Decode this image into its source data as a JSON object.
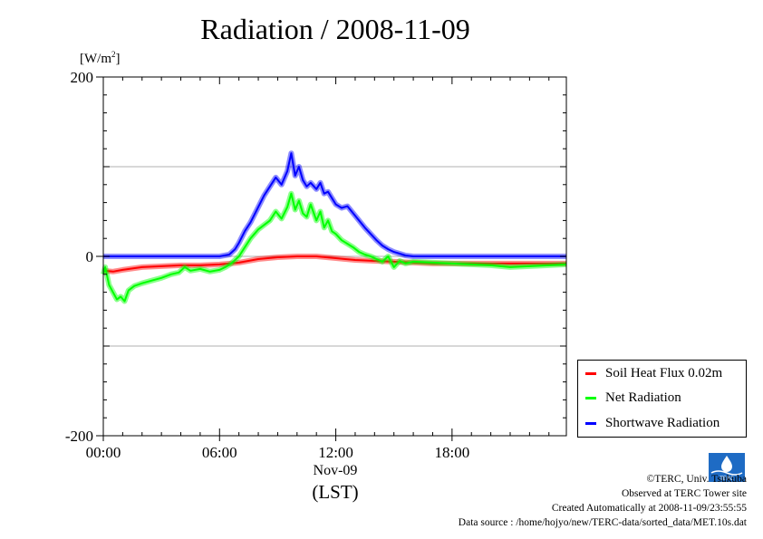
{
  "chart_data": {
    "type": "line",
    "title": "Radiation / 2008-11-09",
    "ylabel": "[W/m2]",
    "ylabel_parts": {
      "base": "[W/m",
      "sup": "2",
      "close": "]"
    },
    "xlabel": "(LST)",
    "date_label": "Nov-09",
    "xlim": [
      0,
      23.9
    ],
    "ylim": [
      -200,
      200
    ],
    "grid": true,
    "yticks": [
      200,
      0,
      -200
    ],
    "ytick_labels": [
      "200",
      "0",
      "-200"
    ],
    "xticks": [
      0,
      6,
      12,
      18
    ],
    "xtick_labels": [
      "00:00",
      "06:00",
      "12:00",
      "18:00"
    ],
    "legend_position": "bottom-right",
    "series": [
      {
        "name": "Soil Heat Flux 0.02m",
        "color": "#ff0000",
        "x": [
          0,
          0.5,
          1,
          2,
          3,
          4,
          5,
          6,
          7,
          8,
          9,
          10,
          11,
          12,
          13,
          14,
          15,
          16,
          17,
          18,
          19,
          20,
          21,
          22,
          23,
          23.9
        ],
        "y": [
          -16,
          -17,
          -15,
          -12,
          -11,
          -10,
          -10,
          -9,
          -7,
          -3,
          -1,
          0,
          0,
          -2,
          -4,
          -5,
          -6,
          -7,
          -8,
          -8,
          -8,
          -8,
          -8,
          -8,
          -8,
          -8
        ]
      },
      {
        "name": "Net Radiation",
        "color": "#00ff00",
        "x": [
          0,
          0.1,
          0.3,
          0.5,
          0.7,
          0.9,
          1.1,
          1.3,
          1.6,
          2.0,
          2.5,
          3.0,
          3.5,
          3.9,
          4.2,
          4.5,
          5.0,
          5.5,
          6.0,
          6.3,
          6.6,
          6.8,
          7.0,
          7.3,
          7.6,
          8.0,
          8.3,
          8.6,
          8.9,
          9.2,
          9.5,
          9.7,
          9.9,
          10.1,
          10.3,
          10.5,
          10.7,
          11.0,
          11.2,
          11.4,
          11.6,
          11.8,
          12.0,
          12.3,
          12.6,
          12.9,
          13.2,
          13.5,
          13.8,
          14.1,
          14.4,
          14.7,
          15.0,
          15.3,
          15.6,
          16.0,
          17.0,
          18.0,
          19.0,
          20.0,
          21.0,
          22.0,
          23.0,
          23.9
        ],
        "y": [
          -20,
          -12,
          -32,
          -40,
          -48,
          -45,
          -50,
          -38,
          -33,
          -30,
          -27,
          -24,
          -20,
          -18,
          -12,
          -16,
          -14,
          -17,
          -15,
          -12,
          -8,
          -4,
          0,
          10,
          20,
          30,
          35,
          40,
          50,
          42,
          55,
          70,
          52,
          62,
          48,
          44,
          58,
          40,
          50,
          32,
          40,
          28,
          25,
          18,
          14,
          10,
          5,
          2,
          0,
          -3,
          -6,
          0,
          -12,
          -5,
          -8,
          -6,
          -7,
          -8,
          -9,
          -10,
          -12,
          -11,
          -10,
          -9
        ]
      },
      {
        "name": "Shortwave Radiation",
        "color": "#0000ff",
        "x": [
          0,
          1,
          2,
          3,
          4,
          5,
          6,
          6.5,
          6.8,
          7.0,
          7.3,
          7.6,
          8.0,
          8.3,
          8.6,
          8.9,
          9.2,
          9.5,
          9.7,
          9.9,
          10.1,
          10.3,
          10.5,
          10.7,
          11.0,
          11.2,
          11.4,
          11.6,
          11.8,
          12.0,
          12.3,
          12.6,
          12.9,
          13.2,
          13.5,
          13.8,
          14.1,
          14.4,
          14.7,
          15.0,
          15.3,
          15.6,
          16.0,
          17.0,
          18.0,
          19.0,
          20.0,
          21.0,
          22.0,
          23.0,
          23.9
        ],
        "y": [
          0,
          0,
          0,
          0,
          0,
          0,
          0,
          2,
          8,
          15,
          28,
          38,
          55,
          68,
          78,
          88,
          80,
          95,
          115,
          90,
          100,
          85,
          78,
          82,
          75,
          82,
          70,
          72,
          65,
          58,
          54,
          56,
          48,
          40,
          32,
          25,
          18,
          12,
          8,
          5,
          3,
          1,
          0,
          0,
          0,
          0,
          0,
          0,
          0,
          0,
          0
        ]
      }
    ]
  },
  "credits": {
    "copyright": "©TERC, Univ. Tsukuba",
    "observed": "Observed at TERC Tower site",
    "created": "Created Automatically at 2008-11-09/23:55:55",
    "source": "Data source : /home/hojyo/new/TERC-data/sorted_data/MET.10s.dat"
  },
  "logo_text": "TERC"
}
